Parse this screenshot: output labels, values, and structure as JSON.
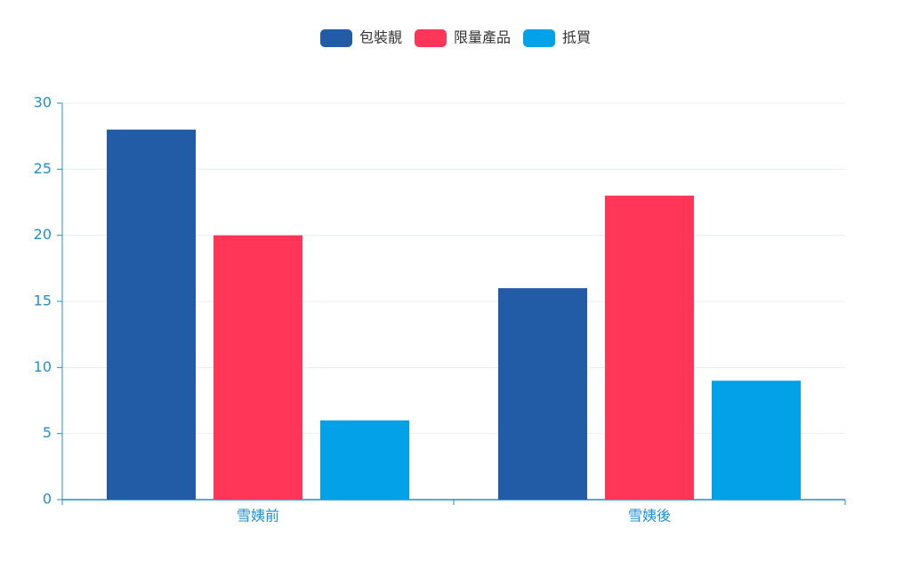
{
  "chart_data": {
    "type": "bar",
    "categories": [
      "雪姨前",
      "雪姨後"
    ],
    "series": [
      {
        "name": "包裝靚",
        "color": "#225ba6",
        "values": [
          28,
          16
        ]
      },
      {
        "name": "限量產品",
        "color": "#ff3657",
        "values": [
          20,
          23
        ]
      },
      {
        "name": "抵買",
        "color": "#03a2e8",
        "values": [
          6,
          9
        ]
      }
    ],
    "ylim": [
      0,
      30
    ],
    "yticks": [
      0,
      5,
      10,
      15,
      20,
      25,
      30
    ],
    "grid": true,
    "legend": "top"
  }
}
